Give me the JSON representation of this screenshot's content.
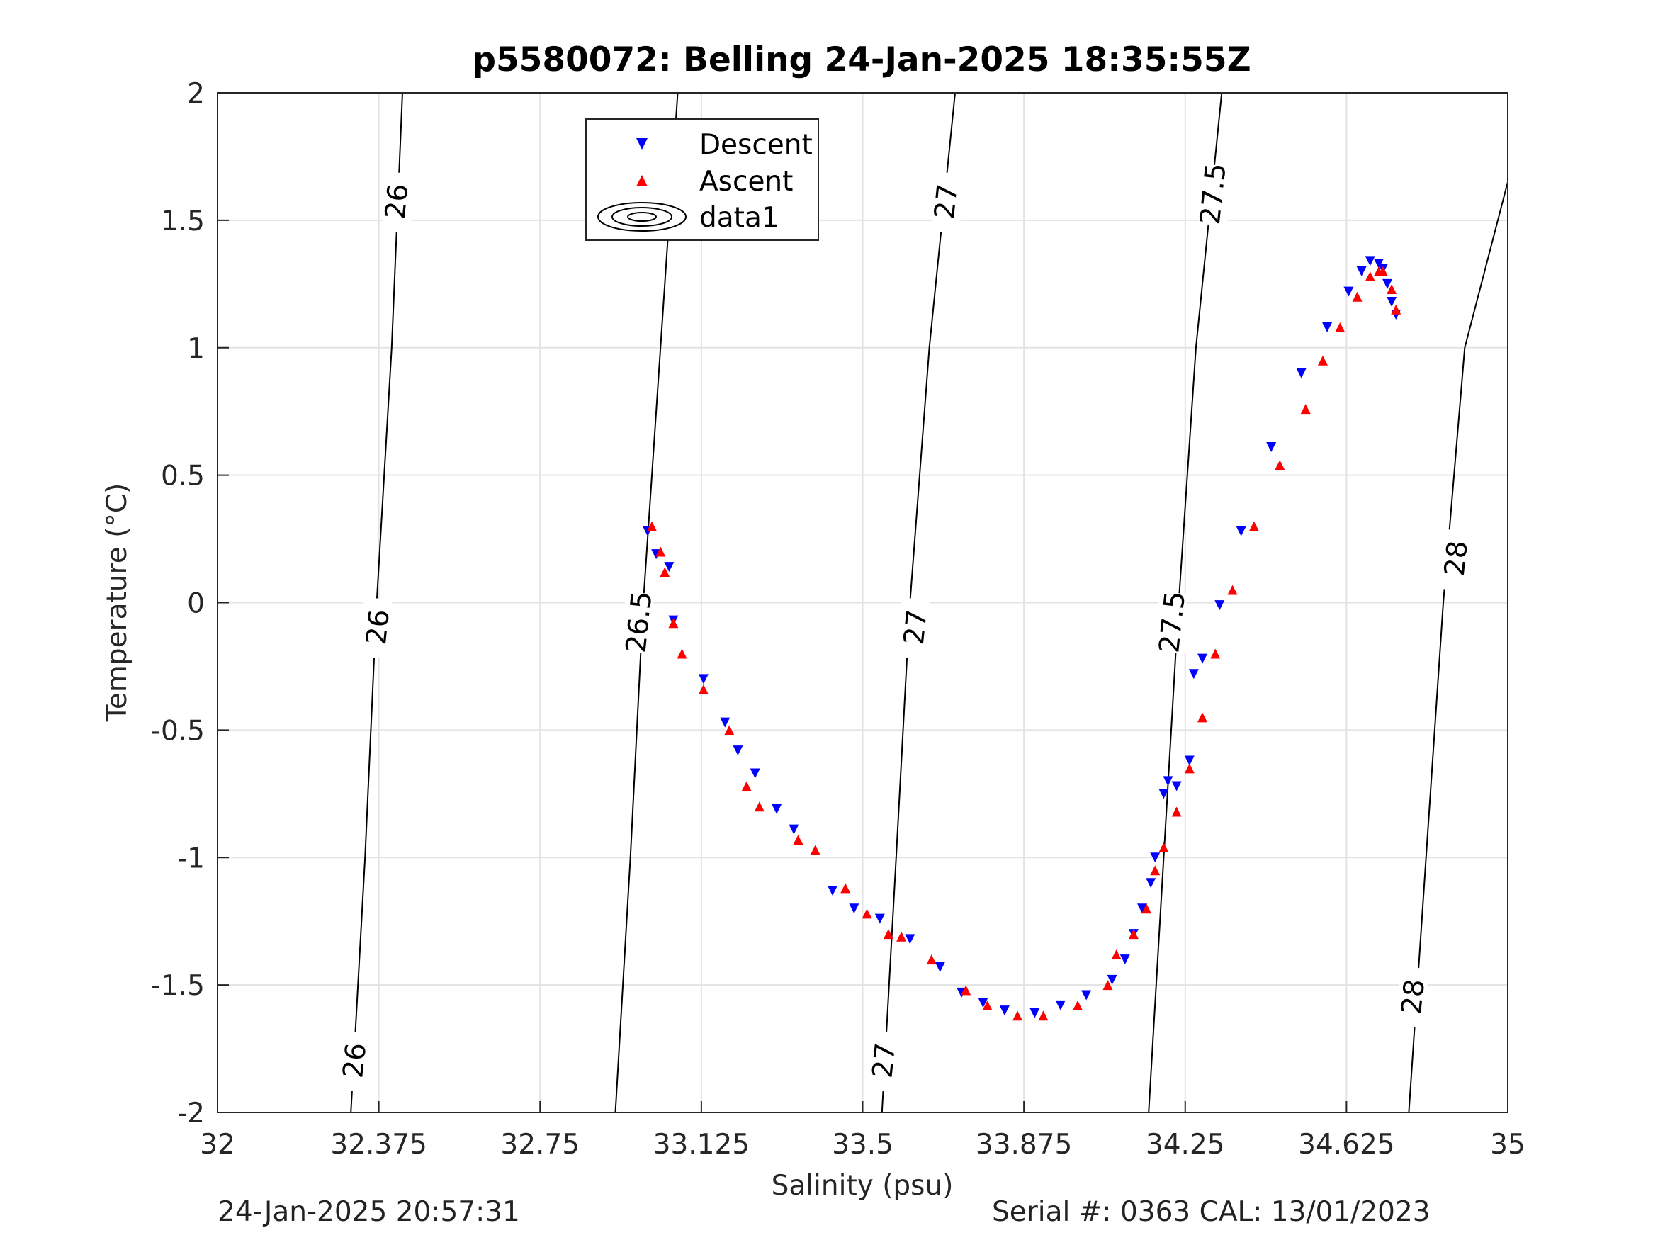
{
  "chart_data": {
    "type": "scatter",
    "title": "p5580072: Belling 24-Jan-2025 18:35:55Z",
    "xlabel": "Salinity (psu)",
    "ylabel": "Temperature (°C)",
    "xlim": [
      32,
      35
    ],
    "ylim": [
      -2,
      2
    ],
    "xticks": [
      "32",
      "32.375",
      "32.75",
      "33.125",
      "33.5",
      "33.875",
      "34.25",
      "34.625",
      "35"
    ],
    "yticks": [
      "2",
      "1.5",
      "1",
      "0.5",
      "0",
      "-0.5",
      "-1",
      "-1.5",
      "-2"
    ],
    "grid": true,
    "legend": {
      "position": "top-center",
      "entries": [
        {
          "label": "Descent",
          "marker": "triangle-down",
          "color": "#0000ff"
        },
        {
          "label": "Ascent",
          "marker": "triangle-up",
          "color": "#ff0000"
        },
        {
          "label": "data1",
          "marker": "contour",
          "color": "#000000"
        }
      ]
    },
    "contours": [
      {
        "label": "26",
        "points": [
          [
            32.31,
            -2.0
          ],
          [
            32.343,
            -1.0
          ],
          [
            32.37,
            0.0
          ],
          [
            32.405,
            1.0
          ],
          [
            32.43,
            2.0
          ]
        ]
      },
      {
        "label": "26.5",
        "points": [
          [
            32.925,
            -2.0
          ],
          [
            32.96,
            -1.0
          ],
          [
            32.99,
            0.0
          ],
          [
            33.03,
            1.0
          ],
          [
            33.07,
            2.0
          ]
        ]
      },
      {
        "label": "27",
        "points": [
          [
            33.545,
            -2.0
          ],
          [
            33.578,
            -1.0
          ],
          [
            33.61,
            0.0
          ],
          [
            33.655,
            1.0
          ],
          [
            33.715,
            2.0
          ]
        ]
      },
      {
        "label": "27.5",
        "points": [
          [
            34.165,
            -2.0
          ],
          [
            34.2,
            -1.0
          ],
          [
            34.235,
            0.0
          ],
          [
            34.275,
            1.0
          ],
          [
            34.335,
            2.0
          ]
        ]
      },
      {
        "label": "28",
        "points": [
          [
            34.77,
            -2.0
          ],
          [
            34.81,
            -1.0
          ],
          [
            34.85,
            0.0
          ],
          [
            34.9,
            1.0
          ],
          [
            35.0,
            1.65
          ]
        ]
      }
    ],
    "contour_labels": [
      {
        "text": "26",
        "x": 32.319,
        "y": -1.8
      },
      {
        "text": "26",
        "x": 32.373,
        "y": -0.1
      },
      {
        "text": "26",
        "x": 32.417,
        "y": 1.57
      },
      {
        "text": "26.5",
        "x": 32.98,
        "y": -0.08
      },
      {
        "text": "26.5",
        "x": 33.055,
        "y": 1.57
      },
      {
        "text": "27",
        "x": 33.55,
        "y": -1.8
      },
      {
        "text": "27",
        "x": 33.623,
        "y": -0.1
      },
      {
        "text": "27",
        "x": 33.694,
        "y": 1.57
      },
      {
        "text": "27.5",
        "x": 34.22,
        "y": -0.08
      },
      {
        "text": "27.5",
        "x": 34.315,
        "y": 1.6
      },
      {
        "text": "28",
        "x": 34.78,
        "y": -1.55
      },
      {
        "text": "28",
        "x": 34.88,
        "y": 0.17
      }
    ],
    "series": [
      {
        "name": "Descent",
        "marker": "triangle-down",
        "color": "#0000ff",
        "x": [
          33.0,
          33.02,
          33.05,
          33.06,
          33.13,
          33.18,
          33.21,
          33.25,
          33.3,
          33.34,
          33.43,
          33.48,
          33.54,
          33.61,
          33.68,
          33.73,
          33.78,
          33.83,
          33.9,
          33.96,
          34.02,
          34.08,
          34.11,
          34.13,
          34.15,
          34.17,
          34.18,
          34.2,
          34.21,
          34.23,
          34.26,
          34.27,
          34.29,
          34.33,
          34.38,
          34.45,
          34.52,
          34.58,
          34.63,
          34.66,
          34.68,
          34.7,
          34.71,
          34.72,
          34.73,
          34.74
        ],
        "y": [
          0.28,
          0.19,
          0.14,
          -0.07,
          -0.3,
          -0.47,
          -0.58,
          -0.67,
          -0.81,
          -0.89,
          -1.13,
          -1.2,
          -1.24,
          -1.32,
          -1.43,
          -1.53,
          -1.57,
          -1.6,
          -1.61,
          -1.58,
          -1.54,
          -1.48,
          -1.4,
          -1.3,
          -1.2,
          -1.1,
          -1.0,
          -0.75,
          -0.7,
          -0.72,
          -0.62,
          -0.28,
          -0.22,
          -0.01,
          0.28,
          0.61,
          0.9,
          1.08,
          1.22,
          1.3,
          1.34,
          1.33,
          1.31,
          1.25,
          1.18,
          1.13
        ]
      },
      {
        "name": "Ascent",
        "marker": "triangle-up",
        "color": "#ff0000",
        "x": [
          33.01,
          33.03,
          33.04,
          33.06,
          33.08,
          33.13,
          33.19,
          33.23,
          33.26,
          33.35,
          33.39,
          33.46,
          33.51,
          33.56,
          33.59,
          33.66,
          33.74,
          33.79,
          33.86,
          33.92,
          34.0,
          34.07,
          34.09,
          34.13,
          34.16,
          34.18,
          34.2,
          34.23,
          34.26,
          34.29,
          34.32,
          34.36,
          34.41,
          34.47,
          34.53,
          34.57,
          34.61,
          34.65,
          34.68,
          34.7,
          34.71,
          34.73,
          34.74
        ],
        "y": [
          0.3,
          0.2,
          0.12,
          -0.08,
          -0.2,
          -0.34,
          -0.5,
          -0.72,
          -0.8,
          -0.93,
          -0.97,
          -1.12,
          -1.22,
          -1.3,
          -1.31,
          -1.4,
          -1.52,
          -1.58,
          -1.62,
          -1.62,
          -1.58,
          -1.5,
          -1.38,
          -1.3,
          -1.2,
          -1.05,
          -0.96,
          -0.82,
          -0.65,
          -0.45,
          -0.2,
          0.05,
          0.3,
          0.54,
          0.76,
          0.95,
          1.08,
          1.2,
          1.28,
          1.3,
          1.3,
          1.23,
          1.15
        ]
      }
    ]
  },
  "footer": {
    "timestamp": "24-Jan-2025 20:57:31",
    "serial": "Serial #: 0363  CAL: 13/01/2023"
  }
}
